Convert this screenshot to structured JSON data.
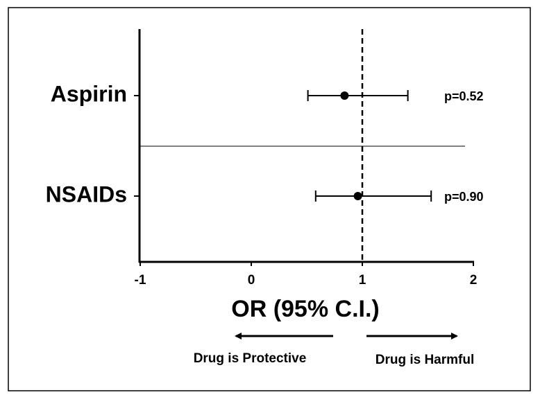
{
  "chart_data": {
    "type": "forest",
    "categories": [
      "Aspirin",
      "NSAIDs"
    ],
    "values": [
      0.84,
      0.96
    ],
    "lower": [
      0.51,
      0.58
    ],
    "upper": [
      1.41,
      1.62
    ],
    "annotations": [
      "p=0.52",
      "p=0.90"
    ],
    "reference": 1,
    "xlim": [
      -1,
      2
    ],
    "xticks": [
      -1,
      0,
      1,
      2
    ],
    "xlabel": "OR (95% C.I.)",
    "left_note": "Drug is Protective",
    "right_note": "Drug is Harmful",
    "color": "#000000"
  }
}
